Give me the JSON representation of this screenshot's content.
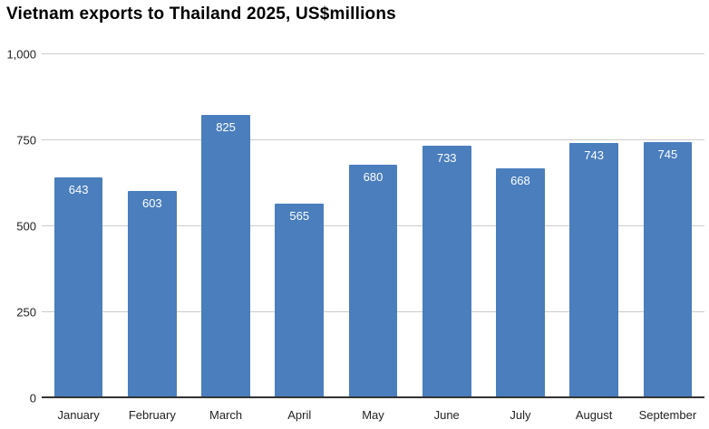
{
  "chart_data": {
    "type": "bar",
    "title": "Vietnam exports to Thailand 2025, US$millions",
    "categories": [
      "January",
      "February",
      "March",
      "April",
      "May",
      "June",
      "July",
      "August",
      "September"
    ],
    "values": [
      643,
      603,
      825,
      565,
      680,
      733,
      668,
      743,
      745
    ],
    "xlabel": "",
    "ylabel": "",
    "ylim": [
      0,
      1000
    ],
    "yticks": [
      0,
      250,
      500,
      750,
      1000
    ],
    "ytick_labels": [
      "0",
      "250",
      "500",
      "750",
      "1,000"
    ],
    "grid": true,
    "legend": "none",
    "colors": {
      "bar": "#4a7ebd",
      "value_label": "#ffffff",
      "gridline": "#cccccc",
      "axis_line": "#333333",
      "tick_text": "#222222",
      "background": "#ffffff"
    }
  }
}
